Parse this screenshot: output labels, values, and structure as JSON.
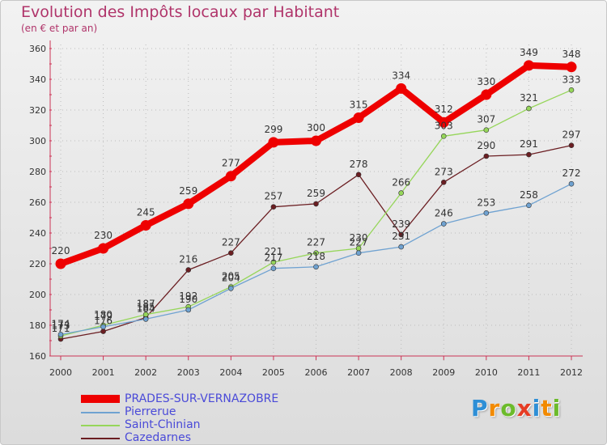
{
  "chart_data": {
    "type": "line",
    "title": "Evolution des Impôts locaux par Habitant",
    "subtitle": "(en € et par an)",
    "x": [
      "2000",
      "2001",
      "2002",
      "2003",
      "2004",
      "2005",
      "2006",
      "2007",
      "2008",
      "2009",
      "2010",
      "2011",
      "2012"
    ],
    "ylim": [
      160,
      360
    ],
    "yticks": [
      160,
      180,
      200,
      220,
      240,
      260,
      280,
      300,
      320,
      340,
      360
    ],
    "series": [
      {
        "name": "PRADES-SUR-VERNAZOBRE",
        "color": "#ee0000",
        "values": [
          220,
          230,
          245,
          259,
          277,
          299,
          300,
          315,
          334,
          312,
          330,
          349,
          348
        ]
      },
      {
        "name": "Pierrerue",
        "color": "#6fa2d1",
        "values": [
          174,
          179,
          184,
          190,
          204,
          217,
          218,
          227,
          231,
          246,
          253,
          258,
          272
        ]
      },
      {
        "name": "Saint-Chinian",
        "color": "#96d65a",
        "values": [
          173,
          180,
          187,
          192,
          205,
          221,
          227,
          230,
          266,
          303,
          307,
          321,
          333
        ]
      },
      {
        "name": "Cazedarnes",
        "color": "#6b1e22",
        "values": [
          171,
          176,
          185,
          216,
          227,
          257,
          259,
          278,
          239,
          273,
          290,
          291,
          297
        ]
      }
    ]
  },
  "logo": {
    "letters": [
      "P",
      "r",
      "o",
      "x",
      "i",
      "t",
      "i"
    ],
    "colors": [
      "#2e8fd6",
      "#f28a00",
      "#6cbb2b",
      "#e63c24",
      "#2e8fd6",
      "#f28a00",
      "#6cbb2b"
    ]
  }
}
